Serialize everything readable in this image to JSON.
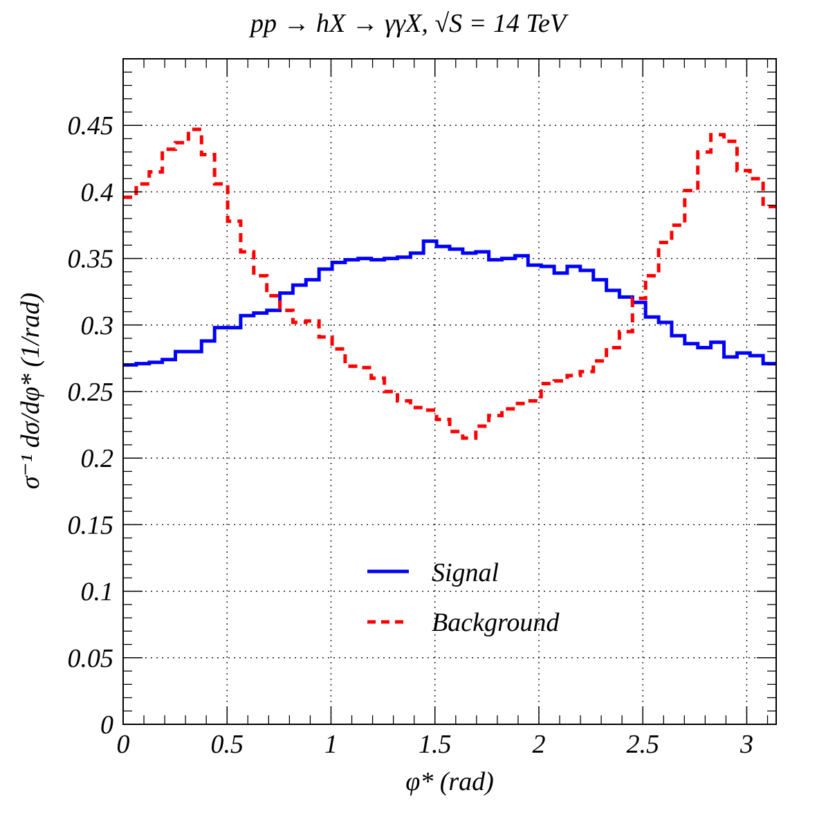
{
  "chart_data": {
    "type": "line",
    "title": "pp → hX → γγX, √S = 14 TeV",
    "xlabel": "φ* (rad)",
    "ylabel": "σ⁻¹ dσ/dφ* (1/rad)",
    "xlim": [
      0,
      3.1416
    ],
    "ylim": [
      0,
      0.5
    ],
    "grid": true,
    "legend_position": "lower-center",
    "x_ticks": [
      "0",
      "0.5",
      "1",
      "1.5",
      "2",
      "2.5",
      "3"
    ],
    "x_tick_values": [
      0,
      0.5,
      1,
      1.5,
      2,
      2.5,
      3
    ],
    "y_ticks": [
      "0",
      "0.05",
      "0.1",
      "0.15",
      "0.2",
      "0.25",
      "0.3",
      "0.35",
      "0.4",
      "0.45"
    ],
    "y_tick_values": [
      0,
      0.05,
      0.1,
      0.15,
      0.2,
      0.25,
      0.3,
      0.35,
      0.4,
      0.45
    ],
    "bin_edges": [
      0,
      0.0628,
      0.1257,
      0.1885,
      0.2513,
      0.3142,
      0.377,
      0.4398,
      0.5027,
      0.5655,
      0.6283,
      0.6912,
      0.754,
      0.8168,
      0.8796,
      0.9425,
      1.0053,
      1.0681,
      1.131,
      1.1938,
      1.2566,
      1.3195,
      1.3823,
      1.4451,
      1.508,
      1.5708,
      1.6336,
      1.6965,
      1.7593,
      1.8221,
      1.885,
      1.9478,
      2.0106,
      2.0735,
      2.1363,
      2.1991,
      2.2619,
      2.3248,
      2.3876,
      2.4504,
      2.5133,
      2.5761,
      2.6389,
      2.7018,
      2.7646,
      2.8274,
      2.8903,
      2.9531,
      3.0159,
      3.0788,
      3.1416
    ],
    "series": [
      {
        "name": "Signal",
        "color": "#0000ff",
        "style": "solid",
        "values": [
          0.27,
          0.271,
          0.272,
          0.274,
          0.28,
          0.28,
          0.288,
          0.298,
          0.298,
          0.307,
          0.309,
          0.311,
          0.324,
          0.33,
          0.334,
          0.342,
          0.347,
          0.349,
          0.35,
          0.349,
          0.35,
          0.351,
          0.354,
          0.363,
          0.359,
          0.357,
          0.354,
          0.355,
          0.349,
          0.35,
          0.352,
          0.345,
          0.344,
          0.339,
          0.344,
          0.341,
          0.334,
          0.326,
          0.321,
          0.317,
          0.306,
          0.302,
          0.292,
          0.286,
          0.283,
          0.287,
          0.276,
          0.279,
          0.277,
          0.271
        ]
      },
      {
        "name": "Background",
        "color": "#ff0000",
        "style": "dashed",
        "values": [
          0.396,
          0.406,
          0.415,
          0.432,
          0.437,
          0.447,
          0.428,
          0.406,
          0.378,
          0.355,
          0.337,
          0.322,
          0.311,
          0.302,
          0.303,
          0.291,
          0.282,
          0.269,
          0.268,
          0.26,
          0.25,
          0.243,
          0.238,
          0.236,
          0.229,
          0.22,
          0.215,
          0.224,
          0.232,
          0.237,
          0.241,
          0.243,
          0.256,
          0.258,
          0.262,
          0.265,
          0.273,
          0.283,
          0.295,
          0.32,
          0.337,
          0.362,
          0.375,
          0.401,
          0.43,
          0.443,
          0.438,
          0.416,
          0.41,
          0.389
        ]
      }
    ]
  }
}
